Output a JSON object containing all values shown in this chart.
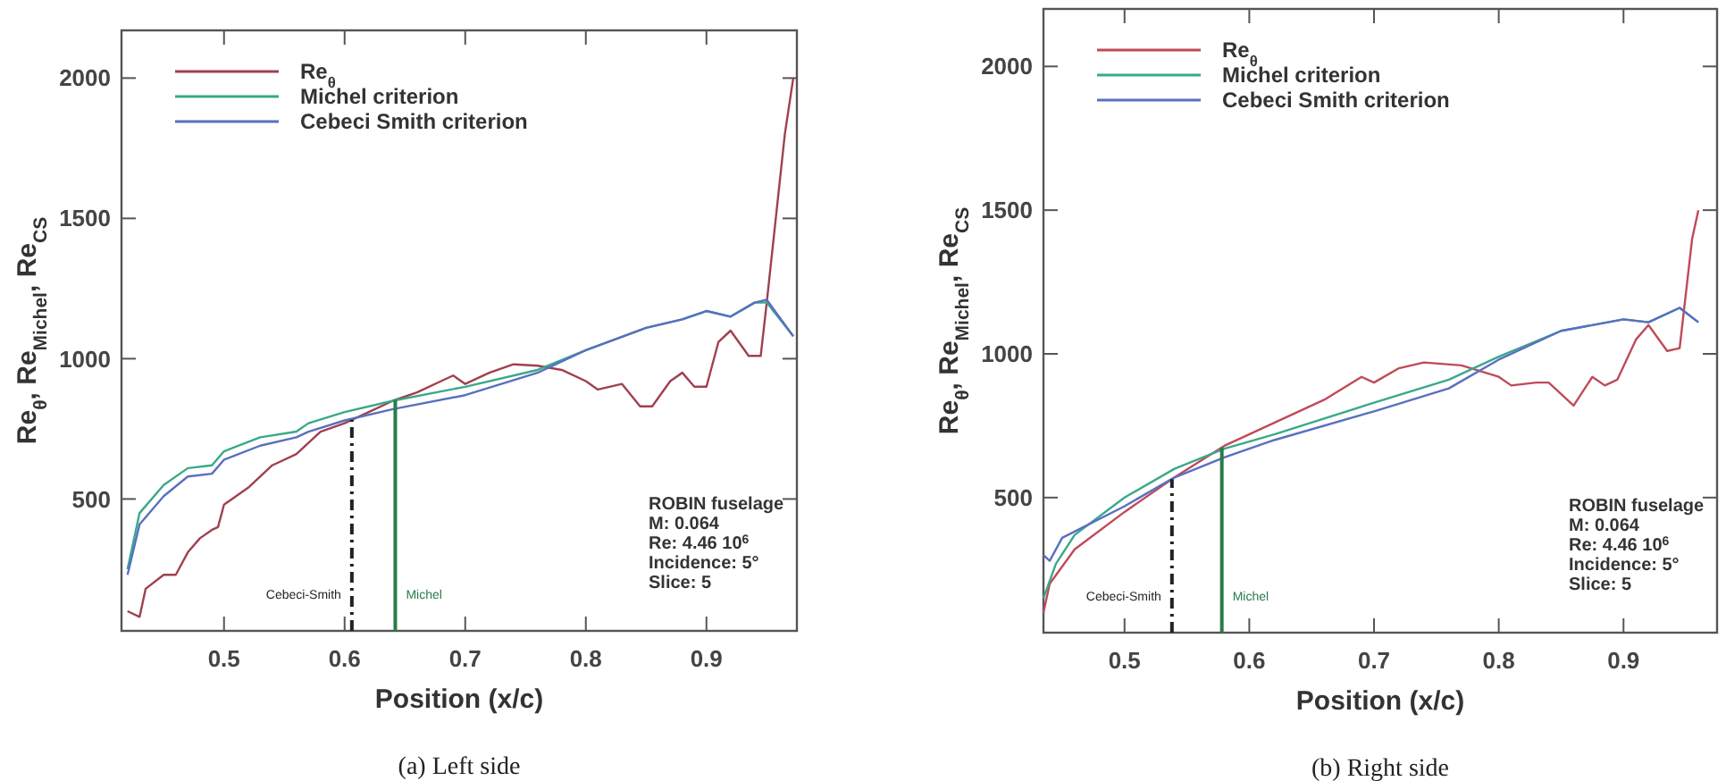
{
  "chart_data": [
    {
      "type": "line",
      "title": "(a) Left side",
      "xlabel": "Position (x/c)",
      "ylabel": "Re$_{θ}$, Re$_{Michel}$, Re$_{CS}$",
      "xlim": [
        0.415,
        0.975
      ],
      "ylim": [
        30,
        2170
      ],
      "xticks": [
        0.5,
        0.6,
        0.7,
        0.8,
        0.9
      ],
      "yticks": [
        500,
        1000,
        1500,
        2000
      ],
      "grid": false,
      "legend": "top left",
      "series": [
        {
          "name": "Re$_{θ}$",
          "color": "#a0404e",
          "x": [
            0.42,
            0.43,
            0.435,
            0.45,
            0.46,
            0.47,
            0.48,
            0.49,
            0.495,
            0.5,
            0.52,
            0.54,
            0.56,
            0.58,
            0.6,
            0.62,
            0.64,
            0.66,
            0.68,
            0.69,
            0.7,
            0.72,
            0.74,
            0.76,
            0.78,
            0.8,
            0.81,
            0.83,
            0.845,
            0.855,
            0.87,
            0.88,
            0.89,
            0.9,
            0.91,
            0.92,
            0.935,
            0.945,
            0.95,
            0.965,
            0.972
          ],
          "values": [
            100,
            80,
            180,
            230,
            230,
            310,
            360,
            390,
            400,
            480,
            540,
            620,
            660,
            740,
            770,
            810,
            850,
            880,
            920,
            940,
            910,
            950,
            980,
            975,
            960,
            920,
            890,
            910,
            830,
            830,
            920,
            950,
            900,
            900,
            1060,
            1100,
            1010,
            1010,
            1200,
            1800,
            2000
          ]
        },
        {
          "name": "Michel criterion",
          "color": "#3aa88a",
          "x": [
            0.42,
            0.43,
            0.45,
            0.47,
            0.49,
            0.5,
            0.53,
            0.56,
            0.57,
            0.6,
            0.64,
            0.7,
            0.76,
            0.8,
            0.85,
            0.88,
            0.9,
            0.92,
            0.94,
            0.95,
            0.972
          ],
          "values": [
            250,
            450,
            550,
            610,
            620,
            670,
            720,
            740,
            770,
            810,
            850,
            900,
            960,
            1030,
            1110,
            1140,
            1170,
            1150,
            1200,
            1200,
            1080
          ]
        },
        {
          "name": "Cebeci Smith criterion",
          "color": "#5a6fc0",
          "x": [
            0.42,
            0.43,
            0.45,
            0.47,
            0.49,
            0.5,
            0.53,
            0.56,
            0.57,
            0.6,
            0.64,
            0.7,
            0.76,
            0.8,
            0.85,
            0.88,
            0.9,
            0.92,
            0.94,
            0.95,
            0.972
          ],
          "values": [
            230,
            410,
            510,
            580,
            590,
            640,
            690,
            720,
            740,
            780,
            820,
            870,
            950,
            1030,
            1110,
            1140,
            1170,
            1150,
            1200,
            1210,
            1080
          ]
        }
      ],
      "ref_lines": [
        {
          "axis": "x",
          "value": 0.606,
          "label": "Cebeci-Smith",
          "color": "#222222",
          "line_style": "dashed"
        },
        {
          "axis": "x",
          "value": 0.642,
          "label": "Michel",
          "color": "#2a7a4a",
          "line_style": "solid"
        }
      ],
      "annotations": [
        "ROBIN fuselage",
        "M: 0.064",
        "Re: 4.46 10$^{6}$",
        "Incidence: 5°",
        "Slice: 5"
      ]
    },
    {
      "type": "line",
      "title": "(b) Right side",
      "xlabel": "Position (x/c)",
      "ylabel": "Re$_{θ}$, Re$_{Michel}$, Re$_{CS}$",
      "xlim": [
        0.435,
        0.975
      ],
      "ylim": [
        30,
        2200
      ],
      "xticks": [
        0.5,
        0.6,
        0.7,
        0.8,
        0.9
      ],
      "yticks": [
        500,
        1000,
        1500,
        2000
      ],
      "grid": false,
      "legend": "top left",
      "series": [
        {
          "name": "Re$_{θ}$",
          "color": "#c04a58",
          "x": [
            0.435,
            0.44,
            0.46,
            0.5,
            0.54,
            0.58,
            0.62,
            0.66,
            0.69,
            0.7,
            0.72,
            0.74,
            0.77,
            0.8,
            0.81,
            0.83,
            0.84,
            0.86,
            0.875,
            0.885,
            0.895,
            0.91,
            0.92,
            0.935,
            0.945,
            0.955,
            0.96
          ],
          "values": [
            100,
            200,
            320,
            450,
            570,
            680,
            760,
            840,
            920,
            900,
            950,
            970,
            960,
            920,
            890,
            900,
            900,
            820,
            920,
            890,
            910,
            1050,
            1100,
            1010,
            1020,
            1400,
            1500
          ]
        },
        {
          "name": "Michel criterion",
          "color": "#3aa88a",
          "x": [
            0.435,
            0.445,
            0.46,
            0.5,
            0.54,
            0.58,
            0.62,
            0.7,
            0.76,
            0.8,
            0.85,
            0.9,
            0.92,
            0.945,
            0.96
          ],
          "values": [
            150,
            270,
            370,
            500,
            600,
            670,
            720,
            830,
            910,
            990,
            1080,
            1120,
            1110,
            1160,
            1110
          ]
        },
        {
          "name": "Cebeci Smith criterion",
          "color": "#5a6fc0",
          "x": [
            0.435,
            0.44,
            0.45,
            0.5,
            0.54,
            0.58,
            0.62,
            0.7,
            0.76,
            0.8,
            0.85,
            0.9,
            0.92,
            0.945,
            0.96
          ],
          "values": [
            300,
            280,
            360,
            470,
            570,
            640,
            700,
            800,
            880,
            980,
            1080,
            1120,
            1110,
            1160,
            1110
          ]
        }
      ],
      "ref_lines": [
        {
          "axis": "x",
          "value": 0.538,
          "label": "Cebeci-Smith",
          "color": "#222222",
          "line_style": "dashed"
        },
        {
          "axis": "x",
          "value": 0.578,
          "label": "Michel",
          "color": "#2a7a4a",
          "line_style": "solid"
        }
      ],
      "annotations": [
        "ROBIN fuselage",
        "M: 0.064",
        "Re: 4.46 10$^{6}$",
        "Incidence: 5°",
        "Slice: 5"
      ]
    }
  ]
}
